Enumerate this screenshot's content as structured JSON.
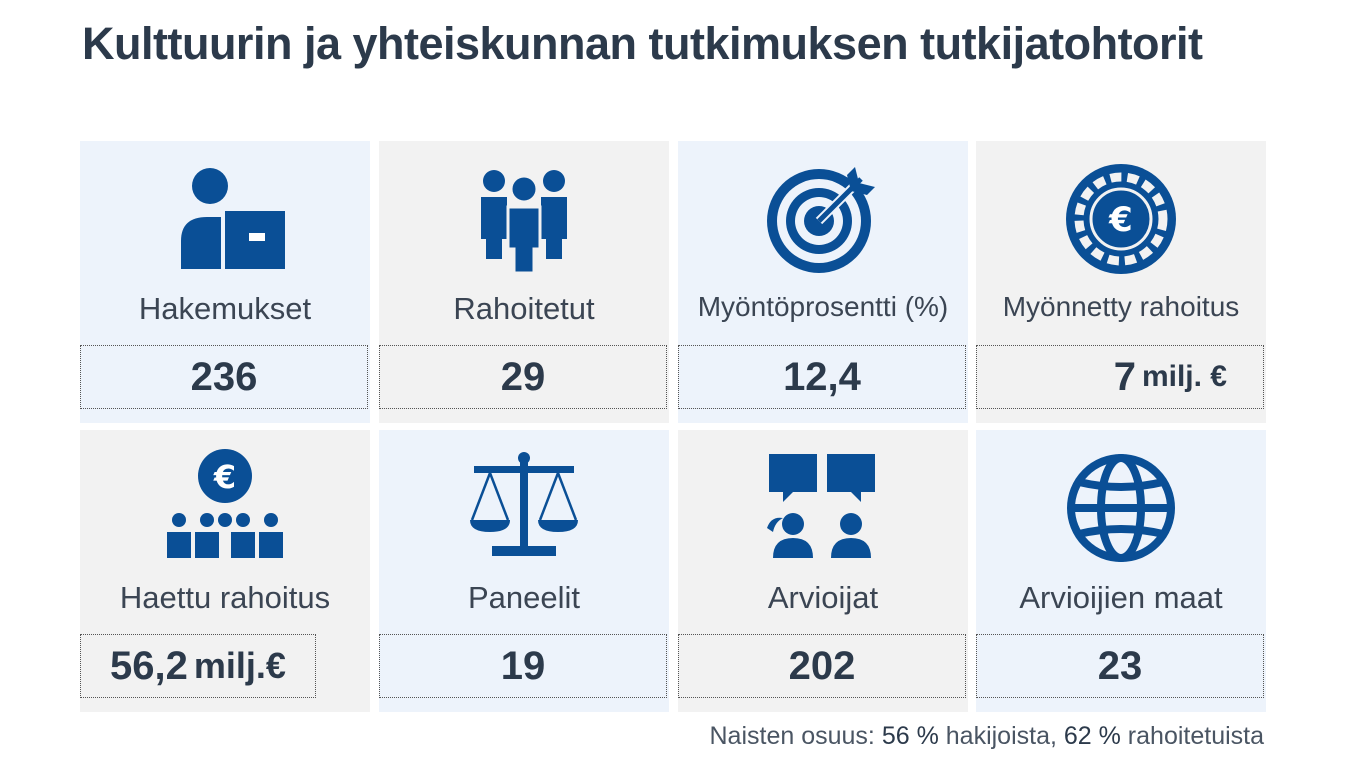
{
  "title": "Kulttuurin ja yhteiskunnan tutkimuksen tutkijatohtorit",
  "colors": {
    "icon": "#0a4f96",
    "text": "#2c3a4b",
    "tile_light": "#edf3fb",
    "tile_grey": "#f2f2f2"
  },
  "tiles": [
    {
      "icon": "applicant-icon",
      "label": "Hakemukset",
      "value": "236",
      "unit": ""
    },
    {
      "icon": "group-icon",
      "label": "Rahoitetut",
      "value": "29",
      "unit": ""
    },
    {
      "icon": "target-icon",
      "label": "Myöntöprosentti (%)",
      "value": "12,4",
      "unit": ""
    },
    {
      "icon": "euro-coin-icon",
      "label": "Myönnetty rahoitus",
      "value": "7",
      "unit": "milj. €"
    },
    {
      "icon": "euro-people-icon",
      "label": "Haettu rahoitus",
      "value": "56,2",
      "unit": "milj.€"
    },
    {
      "icon": "scales-icon",
      "label": "Paneelit",
      "value": "19",
      "unit": ""
    },
    {
      "icon": "reviewers-icon",
      "label": "Arvioijat",
      "value": "202",
      "unit": ""
    },
    {
      "icon": "globe-icon",
      "label": "Arvioijien maat",
      "value": "23",
      "unit": ""
    }
  ],
  "footer": {
    "prefix": "Naisten osuus: ",
    "pct1": "56 %",
    "mid": " hakijoista, ",
    "pct2": "62 %",
    "suffix": " rahoitetuista"
  }
}
